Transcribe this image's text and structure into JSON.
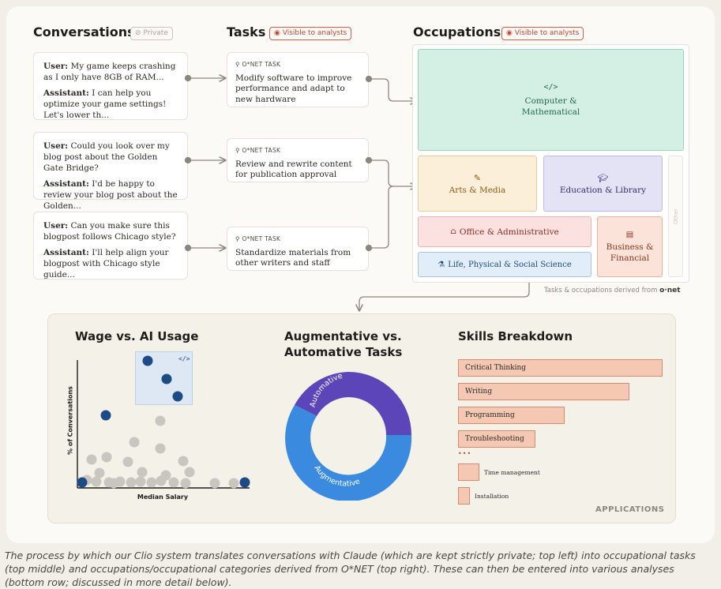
{
  "headers": {
    "conversations": "Conversations",
    "conversations_badge": "Private",
    "tasks": "Tasks",
    "tasks_badge": "Visible to analysts",
    "occupations": "Occupations",
    "occupations_badge": "Visible to analysts"
  },
  "conversations": [
    {
      "user_label": "User:",
      "user_text": "My game keeps crashing as I only have 8GB of RAM...",
      "assistant_label": "Assistant:",
      "assistant_text": "I can help you optimize your game settings! Let's lower th..."
    },
    {
      "user_label": "User:",
      "user_text": " Could you look over my blog post about the Golden Gate Bridge?",
      "assistant_label": "Assistant:",
      "assistant_text": "I'd be happy to review your blog post about the Golden..."
    },
    {
      "user_label": "User:",
      "user_text": "Can you make sure this blogpost follows Chicago style?",
      "assistant_label": "Assistant:",
      "assistant_text": "I'll help align your blogpost with Chicago style guide..."
    }
  ],
  "tasks": [
    {
      "label": "O*NET TASK",
      "text": "Modify software to improve performance and adapt to new hardware"
    },
    {
      "label": "O*NET TASK",
      "text": "Review and rewrite content for publication approval"
    },
    {
      "label": "O*NET TASK",
      "text": "Standardize materials from other writers and staff"
    }
  ],
  "occupations": {
    "computer": "Computer & Mathematical",
    "computer_icon": "</>",
    "arts": "Arts & Media",
    "education": "Education & Library",
    "other": "Other",
    "office": "Office & Administrative",
    "business": "Business & Financial",
    "science": "Life, Physical & Social Science",
    "colors": {
      "computer_bg": "#d4efe4",
      "computer_border": "#9ed3bd",
      "computer_text": "#1f6b52",
      "arts_bg": "#fbefd9",
      "arts_border": "#e7cd9a",
      "arts_text": "#8a5a10",
      "education_bg": "#e4e3f6",
      "education_border": "#bdbbe4",
      "education_text": "#2f2c6e",
      "office_bg": "#fbe1e0",
      "office_border": "#eab4b1",
      "office_text": "#8a2b24",
      "business_bg": "#fbe3d9",
      "business_border": "#e8b39e",
      "business_text": "#8a3418",
      "science_bg": "#e1edf8",
      "science_border": "#a8c6e3",
      "science_text": "#1d4b77"
    },
    "footnote": "Tasks & occupations derived from",
    "footnote_brand": "o·net"
  },
  "wage_chart": {
    "title": "Wage vs. AI Usage",
    "xlabel": "Median Salary",
    "ylabel": "% of Conversations",
    "highlight_icon": "</>"
  },
  "donut": {
    "title_line1": "Augmentative vs.",
    "title_line2": "Automative Tasks",
    "automative": "Automative",
    "augmentative": "Augmentative",
    "automative_color": "#5b45b8",
    "augmentative_color": "#3a8be0"
  },
  "skills": {
    "title": "Skills Breakdown",
    "items": [
      "Critical Thinking",
      "Writing",
      "Programming",
      "Troubleshooting"
    ],
    "ellipsis": "•••",
    "small_items": [
      "Time management",
      "Installation"
    ],
    "applications": "APPLICATIONS"
  },
  "caption": "The process by which our Clio system translates conversations with Claude (which are kept strictly private; top left) into occupational tasks (top middle) and occupations/occupational categories derived from O*NET (top right). These can then be entered into various analyses (bottom row; discussed in more detail below)."
}
